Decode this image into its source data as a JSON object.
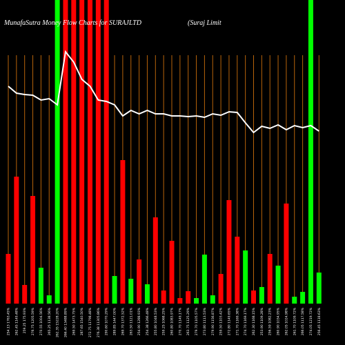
{
  "chart_data": {
    "type": "bar",
    "title": "MunafaSutra  Money Flow  Charts for SURAJLTD",
    "subtitle": "(Suraj Limit",
    "categories": [
      "254.13 1763.45%",
      "262.45 1149.48%",
      "259.25 175.93%",
      "276.75 1205.59%",
      "270.55 1004.56%",
      "265.25 1138.56%",
      "262.35 15228.20%",
      "266.40 13488.89%",
      "269.50 1473.75%",
      "287.65 1540.50%",
      "272.75 11798.48%",
      "276.38 11305.86%",
      "290.60 1070.29%",
      "289.85 1447.00%",
      "269.70 1372.52%",
      "263.50 1121.01%",
      "254.90 1288.93%",
      "254.38 1266.48%",
      "255.80 1048.53%",
      "259.25 1068.25%",
      "260.80 1083.97%",
      "270.70 1149.17%",
      "263.75 1125.29%",
      "279.70 1105.57%",
      "273.80 1113.53%",
      "279.90 1156.87%",
      "259.50 1103.42%",
      "272.80 1149.65%",
      "271.70 1169.38%",
      "274.70 1169.17%",
      "262.30 1168.15%",
      "253.90 1109.28%",
      "256.59 1082.23%",
      "260.90 1034.95%",
      "262.05 1024.98%",
      "261.70 1109.72%",
      "266.05 1117.58%",
      "274.05 1219.72%",
      "256.45 1118.63%"
    ],
    "values": [
      72,
      184,
      27,
      156,
      52,
      12,
      440,
      440,
      440,
      440,
      440,
      440,
      440,
      40,
      208,
      36,
      64,
      28,
      125,
      19,
      91,
      8,
      18,
      8,
      71,
      12,
      43,
      150,
      97,
      77,
      19,
      24,
      72,
      55,
      145,
      10,
      17,
      440,
      45
    ],
    "colors": [
      "#ff0000",
      "#ff0000",
      "#ff0000",
      "#ff0000",
      "#00ff00",
      "#00ff00",
      "#00ff00",
      "#ff0000",
      "#ff0000",
      "#ff0000",
      "#ff0000",
      "#ff0000",
      "#ff0000",
      "#00ff00",
      "#ff0000",
      "#00ff00",
      "#ff0000",
      "#00ff00",
      "#ff0000",
      "#ff0000",
      "#ff0000",
      "#ff0000",
      "#ff0000",
      "#00ff00",
      "#00ff00",
      "#00ff00",
      "#ff0000",
      "#ff0000",
      "#ff0000",
      "#00ff00",
      "#ff0000",
      "#00ff00",
      "#ff0000",
      "#00ff00",
      "#ff0000",
      "#00ff00",
      "#00ff00",
      "#00ff00",
      "#00ff00"
    ],
    "line": {
      "color": "#ffffff",
      "values": [
        315,
        305,
        303,
        302,
        295,
        297,
        288,
        365,
        350,
        325,
        315,
        295,
        293,
        288,
        272,
        280,
        275,
        280,
        275,
        275,
        272,
        272,
        271,
        272,
        270,
        275,
        273,
        278,
        277,
        262,
        248,
        257,
        254,
        259,
        252,
        258,
        255,
        258,
        250
      ]
    },
    "ylim": [
      0,
      440
    ],
    "guide_color": "#b8640a"
  }
}
